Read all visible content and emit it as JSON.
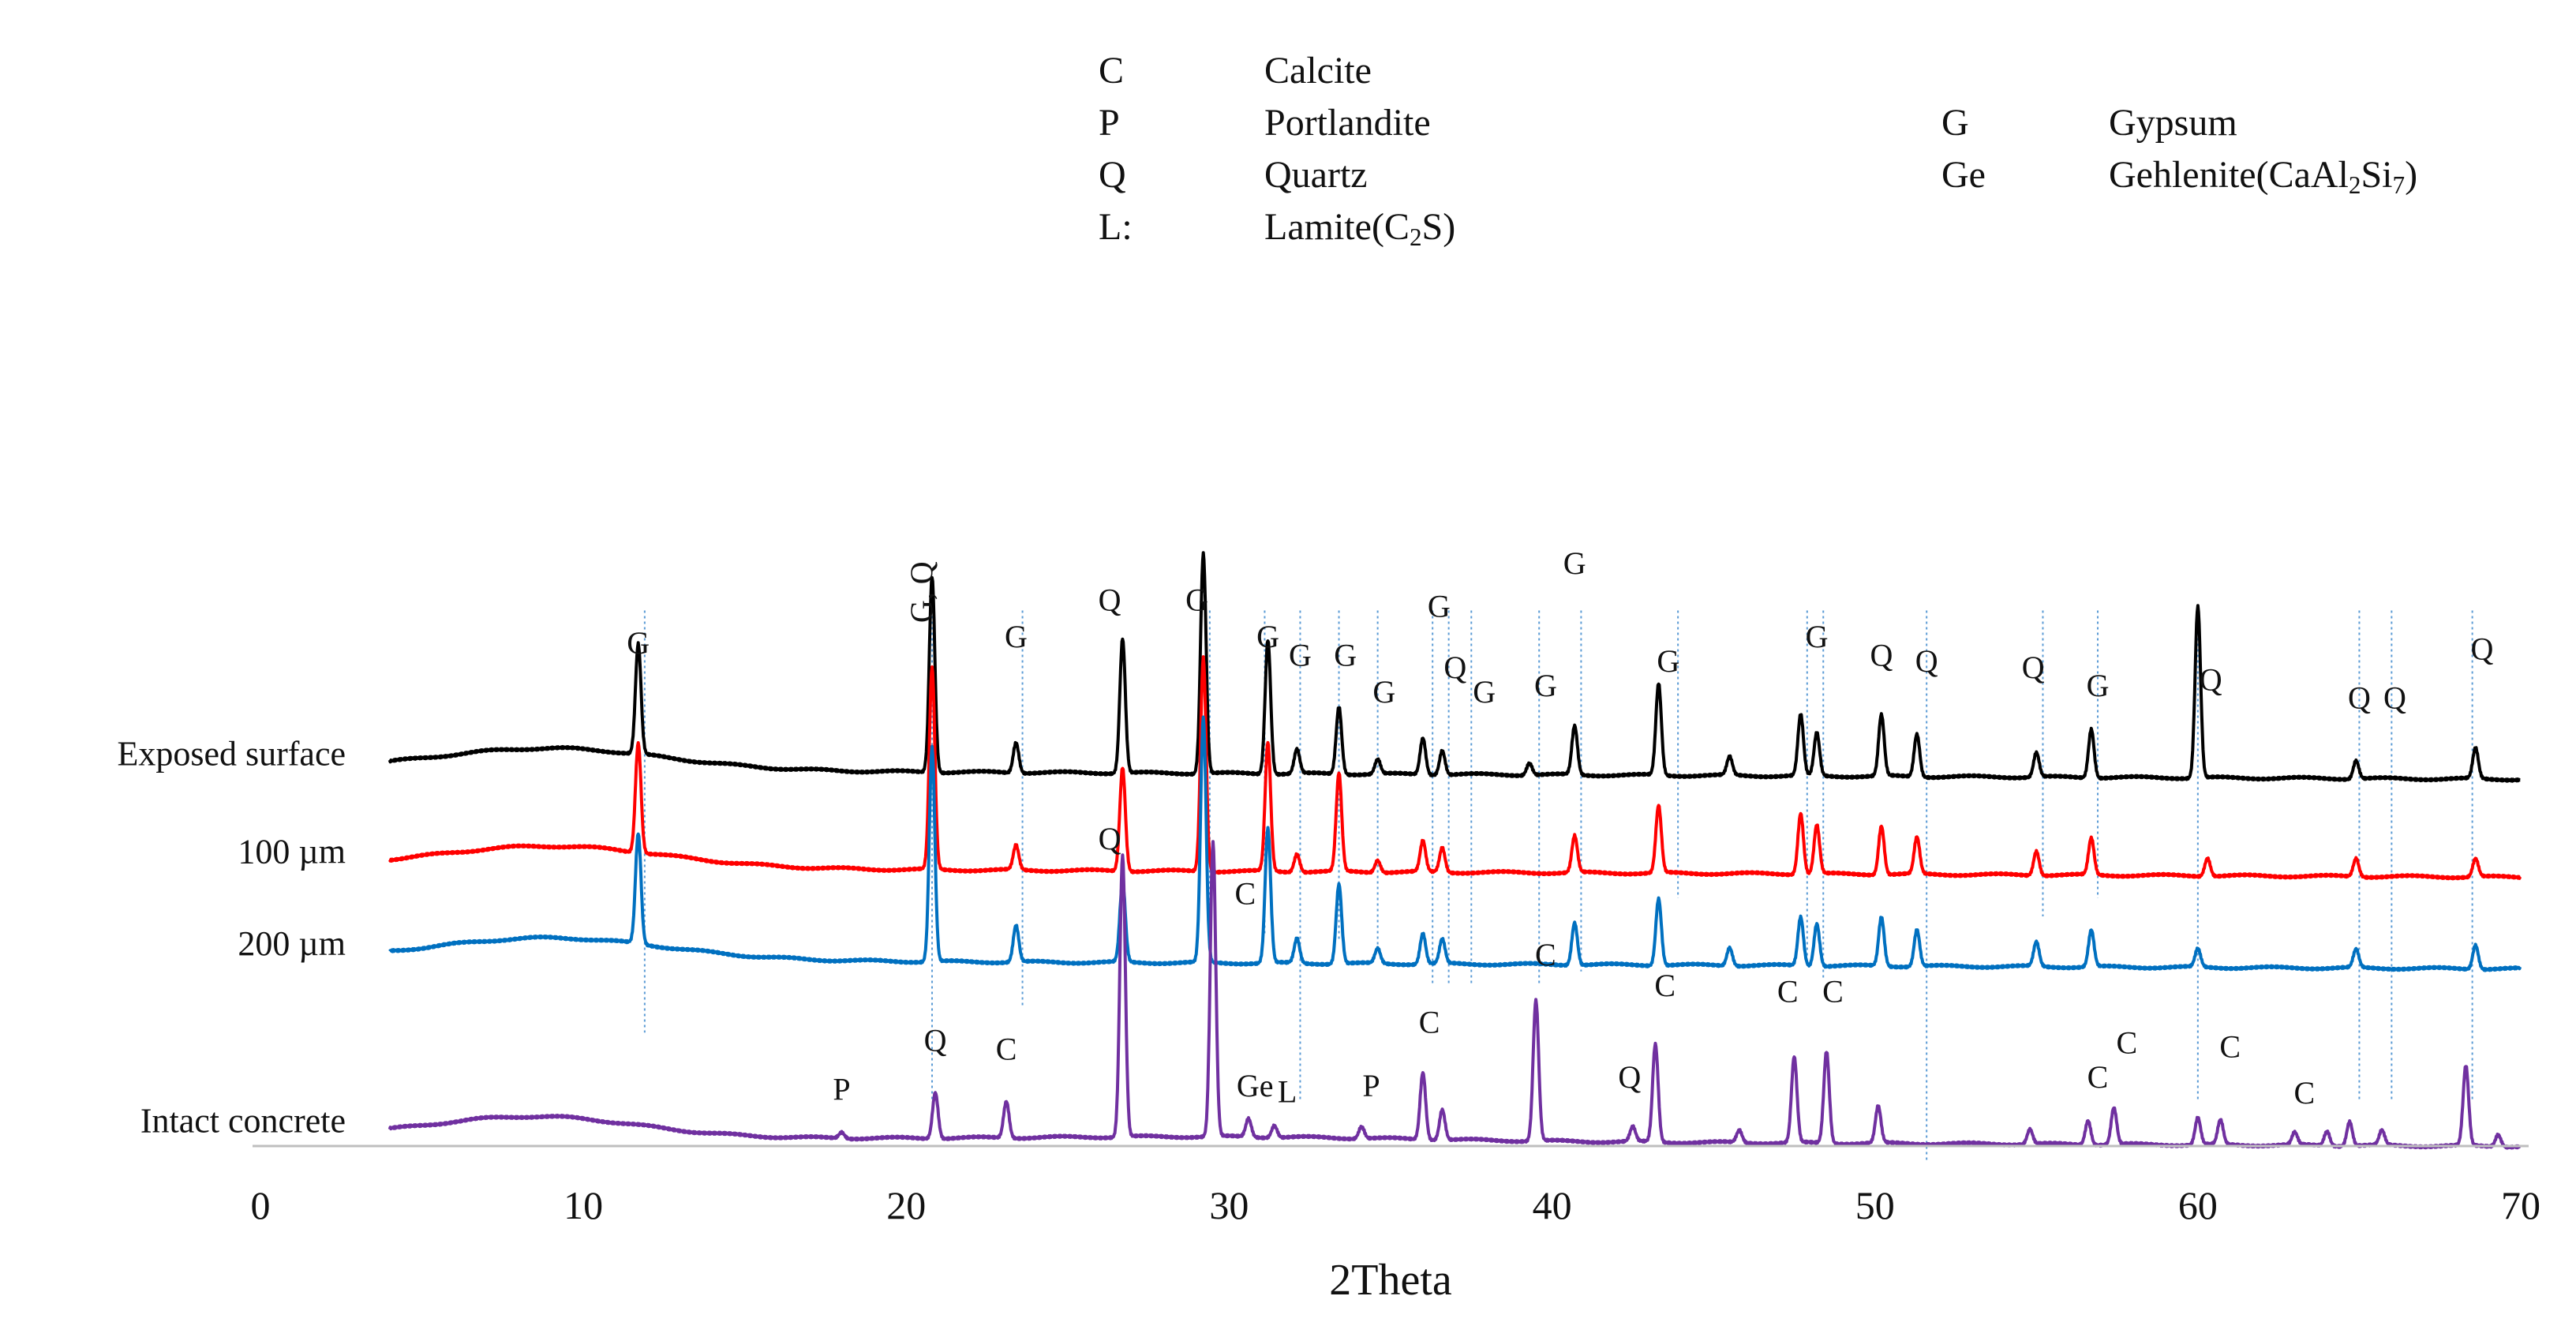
{
  "legend": {
    "left": [
      {
        "abbr": "C",
        "name": "Calcite"
      },
      {
        "abbr": "P",
        "name": "Portlandite"
      },
      {
        "abbr": "Q",
        "name": "Quartz"
      },
      {
        "abbr": "L:",
        "name": "Lamite(C",
        "sub1": "2",
        "tail": "S)"
      }
    ],
    "right": [
      {
        "abbr": "G",
        "name": "Gypsum"
      },
      {
        "abbr": "Ge",
        "name": "Gehlenite(CaAl",
        "sub1": "2",
        "mid": "Si",
        "sub2": "7",
        "tail": ")"
      }
    ]
  },
  "chart_data": {
    "type": "line",
    "title": "",
    "xlabel": "2Theta",
    "ylabel": "",
    "xlim": [
      0,
      70
    ],
    "xticks": [
      0,
      10,
      20,
      30,
      40,
      50,
      60,
      70
    ],
    "grid": false,
    "note": "Stacked XRD patterns with vertical offsets; intensities are relative (arbitrary units).",
    "series": [
      {
        "name": "Exposed surface",
        "color": "#000000",
        "baseline": 3.0,
        "peaks": [
          [
            11.7,
            0.9
          ],
          [
            20.8,
            1.6
          ],
          [
            23.4,
            0.25
          ],
          [
            26.7,
            1.1
          ],
          [
            29.2,
            1.8
          ],
          [
            31.2,
            1.1
          ],
          [
            32.1,
            0.2
          ],
          [
            33.4,
            0.55
          ],
          [
            34.6,
            0.12
          ],
          [
            36.0,
            0.3
          ],
          [
            36.6,
            0.2
          ],
          [
            39.3,
            0.1
          ],
          [
            40.7,
            0.4
          ],
          [
            43.3,
            0.75
          ],
          [
            45.5,
            0.15
          ],
          [
            47.7,
            0.5
          ],
          [
            48.2,
            0.35
          ],
          [
            50.2,
            0.5
          ],
          [
            51.3,
            0.35
          ],
          [
            55.0,
            0.2
          ],
          [
            56.7,
            0.4
          ],
          [
            60.0,
            1.4
          ],
          [
            64.9,
            0.15
          ],
          [
            68.6,
            0.25
          ]
        ]
      },
      {
        "name": "100 µm",
        "color": "#ff0000",
        "baseline": 2.2,
        "peaks": [
          [
            11.7,
            0.9
          ],
          [
            20.8,
            1.65
          ],
          [
            23.4,
            0.2
          ],
          [
            26.7,
            0.85
          ],
          [
            29.2,
            1.75
          ],
          [
            31.2,
            1.05
          ],
          [
            32.1,
            0.15
          ],
          [
            33.4,
            0.8
          ],
          [
            34.6,
            0.1
          ],
          [
            36.0,
            0.25
          ],
          [
            36.6,
            0.2
          ],
          [
            40.7,
            0.3
          ],
          [
            43.3,
            0.55
          ],
          [
            47.7,
            0.5
          ],
          [
            48.2,
            0.4
          ],
          [
            50.2,
            0.4
          ],
          [
            51.3,
            0.3
          ],
          [
            55.0,
            0.2
          ],
          [
            56.7,
            0.3
          ],
          [
            60.3,
            0.15
          ],
          [
            64.9,
            0.15
          ],
          [
            68.6,
            0.15
          ]
        ]
      },
      {
        "name": "200 µm",
        "color": "#0070c0",
        "baseline": 1.45,
        "peaks": [
          [
            11.7,
            0.9
          ],
          [
            20.8,
            1.75
          ],
          [
            23.4,
            0.3
          ],
          [
            26.7,
            0.65
          ],
          [
            29.2,
            2.0
          ],
          [
            31.2,
            1.1
          ],
          [
            32.1,
            0.2
          ],
          [
            33.4,
            0.65
          ],
          [
            34.6,
            0.12
          ],
          [
            36.0,
            0.25
          ],
          [
            36.6,
            0.2
          ],
          [
            40.7,
            0.35
          ],
          [
            43.3,
            0.55
          ],
          [
            45.5,
            0.15
          ],
          [
            47.7,
            0.4
          ],
          [
            48.2,
            0.35
          ],
          [
            50.2,
            0.4
          ],
          [
            51.3,
            0.3
          ],
          [
            55.0,
            0.2
          ],
          [
            56.7,
            0.3
          ],
          [
            60.0,
            0.15
          ],
          [
            64.9,
            0.15
          ],
          [
            68.6,
            0.2
          ]
        ]
      },
      {
        "name": "Intact concrete",
        "color": "#7030a0",
        "baseline": 0.0,
        "peaks": [
          [
            18.0,
            0.05
          ],
          [
            20.9,
            0.38
          ],
          [
            23.1,
            0.3
          ],
          [
            26.7,
            2.3
          ],
          [
            29.5,
            2.4
          ],
          [
            30.6,
            0.15
          ],
          [
            31.4,
            0.1
          ],
          [
            34.1,
            0.1
          ],
          [
            36.0,
            0.55
          ],
          [
            36.6,
            0.25
          ],
          [
            39.5,
            1.15
          ],
          [
            42.5,
            0.12
          ],
          [
            43.2,
            0.8
          ],
          [
            45.8,
            0.1
          ],
          [
            47.5,
            0.7
          ],
          [
            48.5,
            0.75
          ],
          [
            50.1,
            0.3
          ],
          [
            54.8,
            0.12
          ],
          [
            56.6,
            0.2
          ],
          [
            57.4,
            0.3
          ],
          [
            60.0,
            0.22
          ],
          [
            60.7,
            0.2
          ],
          [
            63.0,
            0.1
          ],
          [
            64.0,
            0.12
          ],
          [
            64.7,
            0.2
          ],
          [
            65.7,
            0.12
          ],
          [
            68.3,
            0.65
          ],
          [
            69.3,
            0.1
          ]
        ]
      }
    ],
    "annotations": [
      {
        "label": "G",
        "x": 11.7,
        "y": 3.95
      },
      {
        "label": "G, Q",
        "x": 20.8,
        "y": 4.45,
        "rotate": true
      },
      {
        "label": "G",
        "x": 23.4,
        "y": 4.0
      },
      {
        "label": "Q",
        "x": 26.3,
        "y": 4.3
      },
      {
        "label": "G",
        "x": 29.0,
        "y": 4.3
      },
      {
        "label": "G",
        "x": 31.2,
        "y": 4.0
      },
      {
        "label": "G",
        "x": 32.2,
        "y": 3.85
      },
      {
        "label": "G",
        "x": 33.6,
        "y": 3.85
      },
      {
        "label": "G",
        "x": 34.8,
        "y": 3.55
      },
      {
        "label": "G",
        "x": 36.5,
        "y": 4.25
      },
      {
        "label": "Q",
        "x": 37.0,
        "y": 3.75
      },
      {
        "label": "G",
        "x": 37.9,
        "y": 3.55
      },
      {
        "label": "G",
        "x": 40.7,
        "y": 4.6
      },
      {
        "label": "G",
        "x": 39.8,
        "y": 3.6
      },
      {
        "label": "G",
        "x": 43.6,
        "y": 3.8
      },
      {
        "label": "G",
        "x": 48.2,
        "y": 4.0
      },
      {
        "label": "Q",
        "x": 50.2,
        "y": 3.85
      },
      {
        "label": "Q",
        "x": 51.6,
        "y": 3.8
      },
      {
        "label": "Q",
        "x": 54.9,
        "y": 3.75
      },
      {
        "label": "G",
        "x": 56.9,
        "y": 3.6
      },
      {
        "label": "Q",
        "x": 60.4,
        "y": 3.65
      },
      {
        "label": "Q",
        "x": 65.0,
        "y": 3.5
      },
      {
        "label": "Q",
        "x": 66.1,
        "y": 3.5
      },
      {
        "label": "Q",
        "x": 68.8,
        "y": 3.9
      },
      {
        "label": "Q",
        "x": 26.3,
        "y": 2.35
      },
      {
        "label": "C",
        "x": 30.5,
        "y": 1.9
      },
      {
        "label": "C",
        "x": 39.8,
        "y": 1.4
      },
      {
        "label": "C",
        "x": 43.5,
        "y": 1.15
      },
      {
        "label": "C",
        "x": 47.3,
        "y": 1.1
      },
      {
        "label": "C",
        "x": 48.7,
        "y": 1.1
      },
      {
        "label": "C",
        "x": 36.2,
        "y": 0.85
      },
      {
        "label": "Q",
        "x": 20.9,
        "y": 0.7
      },
      {
        "label": "C",
        "x": 23.1,
        "y": 0.63
      },
      {
        "label": "P",
        "x": 18.0,
        "y": 0.3
      },
      {
        "label": "Ge",
        "x": 30.8,
        "y": 0.33
      },
      {
        "label": "L",
        "x": 31.8,
        "y": 0.28
      },
      {
        "label": "P",
        "x": 34.4,
        "y": 0.33
      },
      {
        "label": "Q",
        "x": 42.4,
        "y": 0.4
      },
      {
        "label": "C",
        "x": 56.9,
        "y": 0.4
      },
      {
        "label": "C",
        "x": 57.8,
        "y": 0.68
      },
      {
        "label": "C",
        "x": 61.0,
        "y": 0.65
      },
      {
        "label": "C",
        "x": 63.3,
        "y": 0.27
      }
    ],
    "reference_lines": [
      {
        "x": 11.9,
        "y_bottom": 0.85
      },
      {
        "x": 20.8,
        "y_bottom": 0.3
      },
      {
        "x": 23.6,
        "y_bottom": 1.05
      },
      {
        "x": 29.4,
        "y_bottom": 1.1
      },
      {
        "x": 31.1,
        "y_bottom": 1.65
      },
      {
        "x": 32.2,
        "y_bottom": 0.3
      },
      {
        "x": 33.4,
        "y_bottom": 1.6
      },
      {
        "x": 34.6,
        "y_bottom": 1.55
      },
      {
        "x": 36.3,
        "y_bottom": 1.25
      },
      {
        "x": 36.8,
        "y_bottom": 1.25
      },
      {
        "x": 37.5,
        "y_bottom": 1.25
      },
      {
        "x": 39.6,
        "y_bottom": 1.25
      },
      {
        "x": 40.9,
        "y_bottom": 1.35
      },
      {
        "x": 43.9,
        "y_bottom": 1.95
      },
      {
        "x": 47.9,
        "y_bottom": 1.45
      },
      {
        "x": 48.4,
        "y_bottom": 1.3
      },
      {
        "x": 51.6,
        "y_bottom": -0.2
      },
      {
        "x": 55.2,
        "y_bottom": 1.8
      },
      {
        "x": 56.9,
        "y_bottom": 1.95
      },
      {
        "x": 60.0,
        "y_bottom": 0.3
      },
      {
        "x": 65.0,
        "y_bottom": 0.3
      },
      {
        "x": 66.0,
        "y_bottom": 0.3
      },
      {
        "x": 68.5,
        "y_bottom": 0.3
      }
    ]
  }
}
